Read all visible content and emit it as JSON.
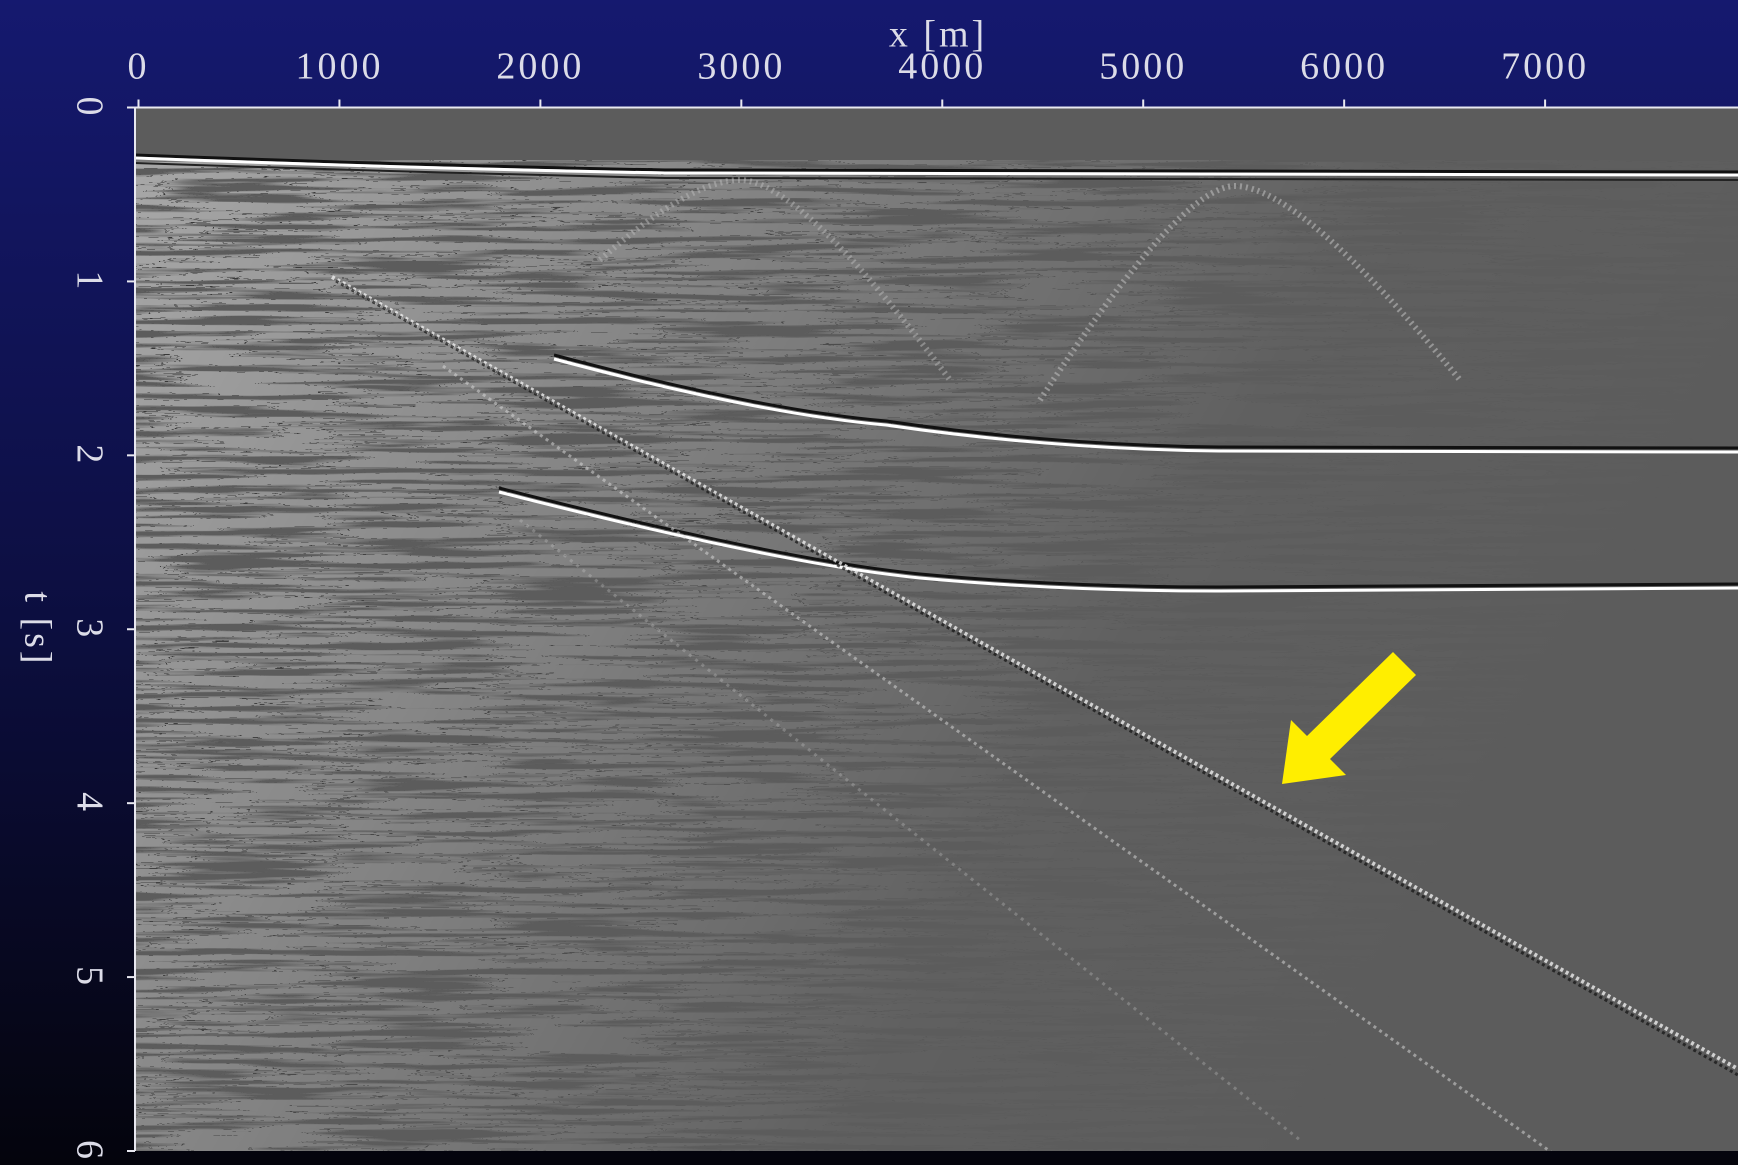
{
  "chart_data": {
    "type": "image",
    "x_label": "x [m]",
    "y_label": "t [s]",
    "xlim": [
      0,
      7960
    ],
    "xticks": [
      0,
      1000,
      2000,
      3000,
      4000,
      5000,
      6000,
      7000
    ],
    "ylim": [
      6,
      0
    ],
    "yticks": [
      0,
      1,
      2,
      3,
      4,
      5,
      6
    ]
  }
}
